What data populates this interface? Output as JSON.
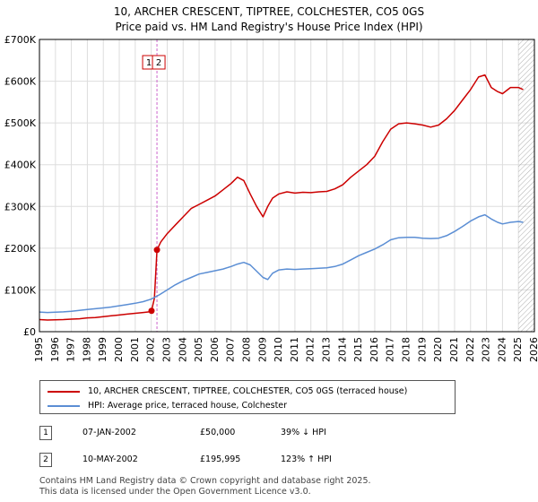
{
  "title_line1": "10, ARCHER CRESCENT, TIPTREE, COLCHESTER, CO5 0GS",
  "title_line2": "Price paid vs. HM Land Registry's House Price Index (HPI)",
  "colors": {
    "property": "#cc0000",
    "hpi": "#5b8ed4",
    "vline": "#cc66cc",
    "grid": "#dddddd",
    "future_hatch": "#999999"
  },
  "chart_data": {
    "type": "line",
    "ylim": [
      0,
      700000
    ],
    "xlim": [
      1995,
      2026
    ],
    "y_ticks": [
      0,
      100000,
      200000,
      300000,
      400000,
      500000,
      600000,
      700000
    ],
    "y_tick_labels": [
      "£0",
      "£100K",
      "£200K",
      "£300K",
      "£400K",
      "£500K",
      "£600K",
      "£700K"
    ],
    "x_ticks": [
      1995,
      1996,
      1997,
      1998,
      1999,
      2000,
      2001,
      2002,
      2003,
      2004,
      2005,
      2006,
      2007,
      2008,
      2009,
      2010,
      2011,
      2012,
      2013,
      2014,
      2015,
      2016,
      2017,
      2018,
      2019,
      2020,
      2021,
      2022,
      2023,
      2024,
      2025,
      2026
    ],
    "x_tick_labels": [
      "1995",
      "1996",
      "1997",
      "1998",
      "1999",
      "2000",
      "2001",
      "2002",
      "2003",
      "2004",
      "2005",
      "2006",
      "2007",
      "2008",
      "2009",
      "2010",
      "2011",
      "2012",
      "2013",
      "2014",
      "2015",
      "2016",
      "2017",
      "2018",
      "2019",
      "2020",
      "2021",
      "2022",
      "2023",
      "2024",
      "2025",
      "2026"
    ],
    "future_from": 2025.0,
    "vline_x": 2002.36,
    "markers": [
      {
        "label": "1",
        "x": 2002.02,
        "y": 50000
      },
      {
        "label": "2",
        "x": 2002.36,
        "y": 195995
      }
    ],
    "marker_box_labels": [
      "1",
      "2"
    ],
    "series": [
      {
        "name": "10, ARCHER CRESCENT, TIPTREE, COLCHESTER, CO5 0GS (terraced house)",
        "color": "#cc0000",
        "x": [
          1995.0,
          1995.5,
          1996.0,
          1996.5,
          1997.0,
          1997.5,
          1998.0,
          1998.5,
          1999.0,
          1999.5,
          2000.0,
          2000.5,
          2001.0,
          2001.5,
          2002.0,
          2002.02,
          2002.2,
          2002.36,
          2002.6,
          2003.0,
          2003.5,
          2004.0,
          2004.5,
          2005.0,
          2005.5,
          2006.0,
          2006.5,
          2007.0,
          2007.4,
          2007.8,
          2008.2,
          2008.6,
          2009.0,
          2009.3,
          2009.6,
          2010.0,
          2010.5,
          2011.0,
          2011.5,
          2012.0,
          2012.5,
          2013.0,
          2013.5,
          2014.0,
          2014.5,
          2015.0,
          2015.5,
          2016.0,
          2016.5,
          2017.0,
          2017.5,
          2018.0,
          2018.5,
          2019.0,
          2019.5,
          2020.0,
          2020.5,
          2021.0,
          2021.5,
          2022.0,
          2022.5,
          2022.9,
          2023.3,
          2023.7,
          2024.0,
          2024.5,
          2025.0,
          2025.3
        ],
        "y": [
          29000,
          28000,
          28500,
          29000,
          30000,
          31000,
          33000,
          34000,
          36000,
          38000,
          40000,
          42000,
          44000,
          46000,
          48000,
          50000,
          80000,
          195995,
          215000,
          235000,
          255000,
          275000,
          295000,
          305000,
          315000,
          325000,
          340000,
          355000,
          370000,
          362000,
          330000,
          300000,
          275000,
          300000,
          320000,
          330000,
          335000,
          332000,
          334000,
          333000,
          335000,
          336000,
          342000,
          352000,
          370000,
          385000,
          400000,
          420000,
          455000,
          485000,
          498000,
          500000,
          498000,
          495000,
          490000,
          495000,
          510000,
          530000,
          555000,
          580000,
          610000,
          615000,
          585000,
          575000,
          570000,
          585000,
          585000,
          580000
        ]
      },
      {
        "name": "HPI: Average price, terraced house, Colchester",
        "color": "#5b8ed4",
        "x": [
          1995.0,
          1995.5,
          1996.0,
          1996.5,
          1997.0,
          1997.5,
          1998.0,
          1998.5,
          1999.0,
          1999.5,
          2000.0,
          2000.5,
          2001.0,
          2001.5,
          2002.0,
          2002.5,
          2003.0,
          2003.5,
          2004.0,
          2004.5,
          2005.0,
          2005.5,
          2006.0,
          2006.5,
          2007.0,
          2007.4,
          2007.8,
          2008.2,
          2008.6,
          2009.0,
          2009.3,
          2009.6,
          2010.0,
          2010.5,
          2011.0,
          2011.5,
          2012.0,
          2012.5,
          2013.0,
          2013.5,
          2014.0,
          2014.5,
          2015.0,
          2015.5,
          2016.0,
          2016.5,
          2017.0,
          2017.5,
          2018.0,
          2018.5,
          2019.0,
          2019.5,
          2020.0,
          2020.5,
          2021.0,
          2021.5,
          2022.0,
          2022.5,
          2022.9,
          2023.3,
          2023.7,
          2024.0,
          2024.5,
          2025.0,
          2025.3
        ],
        "y": [
          47000,
          46000,
          46500,
          47500,
          49000,
          51000,
          53000,
          55000,
          57000,
          59000,
          62000,
          65000,
          68000,
          72000,
          78000,
          88000,
          100000,
          112000,
          122000,
          130000,
          138000,
          142000,
          146000,
          150000,
          156000,
          162000,
          166000,
          160000,
          145000,
          130000,
          125000,
          140000,
          148000,
          150000,
          149000,
          150000,
          151000,
          152000,
          153000,
          156000,
          162000,
          172000,
          182000,
          190000,
          198000,
          208000,
          220000,
          225000,
          226000,
          226000,
          224000,
          223000,
          224000,
          230000,
          240000,
          252000,
          265000,
          275000,
          280000,
          270000,
          262000,
          258000,
          262000,
          264000,
          262000
        ]
      }
    ]
  },
  "legend": {
    "property_label": "10, ARCHER CRESCENT, TIPTREE, COLCHESTER, CO5 0GS (terraced house)",
    "hpi_label": "HPI: Average price, terraced house, Colchester"
  },
  "transactions": [
    {
      "num": "1",
      "date": "07-JAN-2002",
      "price": "£50,000",
      "hpi": "39% ↓ HPI"
    },
    {
      "num": "2",
      "date": "10-MAY-2002",
      "price": "£195,995",
      "hpi": "123% ↑ HPI"
    }
  ],
  "footer_line1": "Contains HM Land Registry data © Crown copyright and database right 2025.",
  "footer_line2": "This data is licensed under the Open Government Licence v3.0."
}
